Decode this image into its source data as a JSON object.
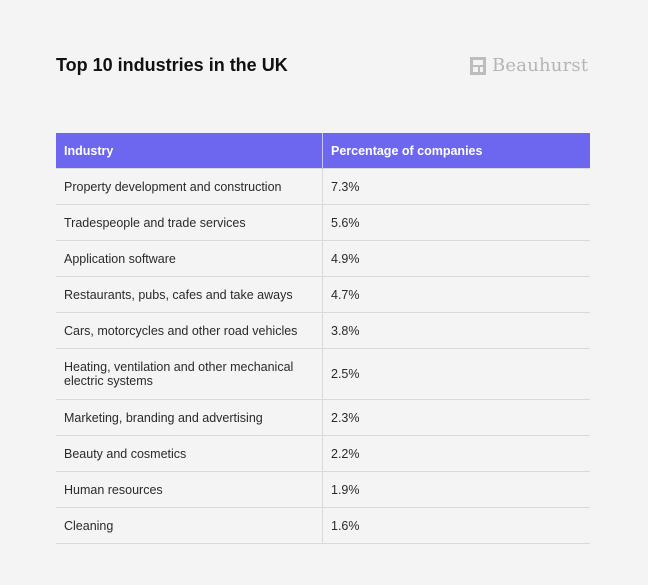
{
  "header": {
    "title": "Top 10 industries in the UK",
    "logo_text": "Beauhurst",
    "logo_icon": "beauhurst-logo-mark"
  },
  "table": {
    "columns": [
      "Industry",
      "Percentage of companies"
    ],
    "rows": [
      {
        "industry": "Property development and construction",
        "percent": "7.3%"
      },
      {
        "industry": "Tradespeople and trade services",
        "percent": "5.6%"
      },
      {
        "industry": "Application software",
        "percent": "4.9%"
      },
      {
        "industry": "Restaurants, pubs, cafes and take aways",
        "percent": "4.7%"
      },
      {
        "industry": "Cars, motorcycles and other road vehicles",
        "percent": "3.8%"
      },
      {
        "industry": "Heating, ventilation and other mechanical electric systems",
        "percent": "2.5%"
      },
      {
        "industry": "Marketing, branding and advertising",
        "percent": "2.3%"
      },
      {
        "industry": "Beauty and cosmetics",
        "percent": "2.2%"
      },
      {
        "industry": "Human resources",
        "percent": "1.9%"
      },
      {
        "industry": "Cleaning",
        "percent": "1.6%"
      }
    ]
  },
  "colors": {
    "header_bg": "#6c67ee",
    "page_bg": "#f4f4f4"
  }
}
